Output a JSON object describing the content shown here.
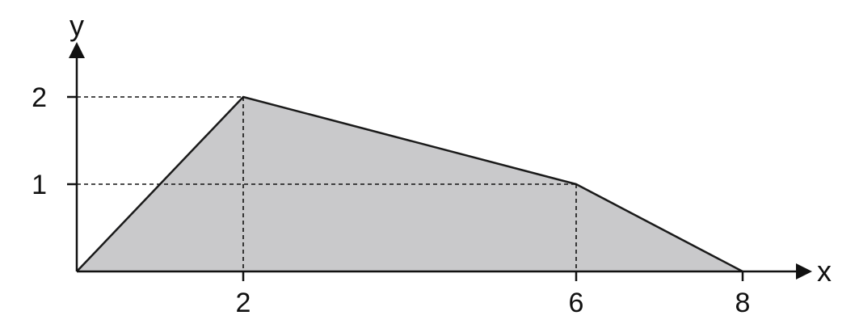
{
  "chart_data": {
    "type": "area",
    "title": "",
    "xlabel": "x",
    "ylabel": "y",
    "x": [
      0,
      2,
      6,
      8
    ],
    "series": [
      {
        "values": [
          0,
          2,
          1,
          0
        ]
      }
    ],
    "xlim": [
      0,
      8
    ],
    "ylim": [
      0,
      2
    ],
    "xticks": [
      {
        "value": 2,
        "label": "2"
      },
      {
        "value": 6,
        "label": "6"
      },
      {
        "value": 8,
        "label": "8"
      }
    ],
    "yticks": [
      {
        "value": 1,
        "label": "1"
      },
      {
        "value": 2,
        "label": "2"
      }
    ],
    "guide_points": [
      {
        "x": 2,
        "y": 2
      },
      {
        "x": 6,
        "y": 1
      }
    ],
    "grid": false,
    "legend": "none",
    "colors": {
      "fill": "#c9c9cb",
      "line": "#1a1a1a",
      "axis": "#111111",
      "guide": "#111111"
    }
  }
}
